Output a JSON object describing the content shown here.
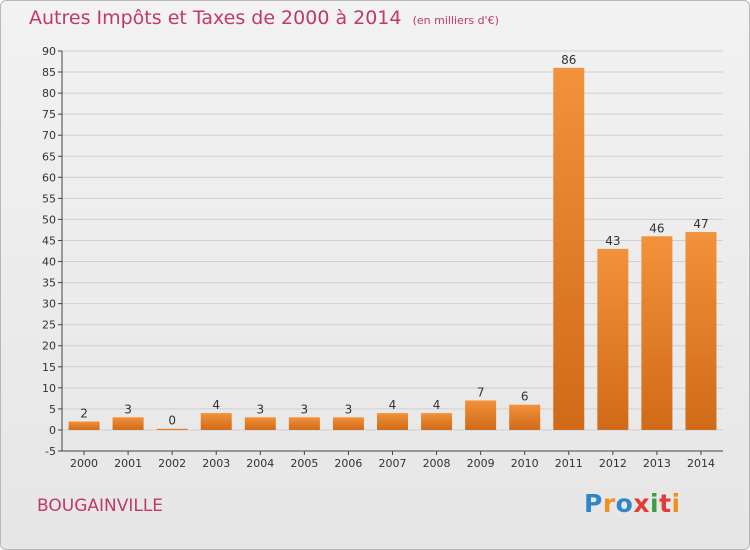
{
  "title": "Autres Impôts et Taxes de 2000 à 2014",
  "unit": "(en milliers d'€)",
  "commune": "BOUGAINVILLE",
  "logo": {
    "letters": [
      "P",
      "r",
      "o",
      "x",
      "i",
      "t",
      "i"
    ],
    "colors": [
      "#2f86c8",
      "#f0901e",
      "#2f86c8",
      "#e23b3b",
      "#3aa047",
      "#e23b3b",
      "#f0901e"
    ]
  },
  "colors": {
    "bar": "#f2923a",
    "bar_dark": "#d06a18",
    "title": "#c03a62",
    "grid": "#d0d0d0"
  },
  "chart_data": {
    "type": "bar",
    "categories": [
      "2000",
      "2001",
      "2002",
      "2003",
      "2004",
      "2005",
      "2006",
      "2007",
      "2008",
      "2009",
      "2010",
      "2011",
      "2012",
      "2013",
      "2014"
    ],
    "values": [
      2,
      3,
      0,
      4,
      3,
      3,
      3,
      4,
      4,
      7,
      6,
      86,
      43,
      46,
      47
    ],
    "labels": [
      "2",
      "3",
      "0",
      "4",
      "3",
      "3",
      "3",
      "4",
      "4",
      "7",
      "6",
      "86",
      "43",
      "46",
      "47"
    ],
    "ylim": [
      -5,
      90
    ],
    "yticks": [
      -5,
      0,
      5,
      10,
      15,
      20,
      25,
      30,
      35,
      40,
      45,
      50,
      55,
      60,
      65,
      70,
      75,
      80,
      85,
      90
    ],
    "grid": true
  }
}
